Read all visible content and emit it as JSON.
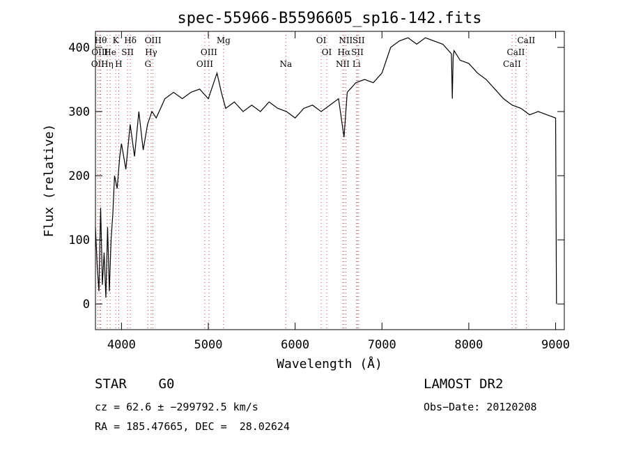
{
  "chart_data": {
    "type": "line",
    "title": "spec-55966-B5596605_sp16-142.fits",
    "xlabel": "Wavelength (Å)",
    "ylabel": "Flux (relative)",
    "xlim": [
      3700,
      9100
    ],
    "ylim": [
      -40,
      425
    ],
    "xticks": [
      4000,
      5000,
      6000,
      7000,
      8000,
      9000
    ],
    "yticks": [
      0,
      100,
      200,
      300,
      400
    ],
    "grid": false,
    "line_color": "#000000",
    "marker_color": "#c04040",
    "series": [
      {
        "x": [
          3700,
          3720,
          3740,
          3760,
          3780,
          3800,
          3820,
          3840,
          3860,
          3880,
          3900,
          3920,
          3950,
          3980,
          4000,
          4050,
          4100,
          4150,
          4200,
          4250,
          4300,
          4350,
          4400,
          4500,
          4600,
          4700,
          4800,
          4900,
          5000,
          5100,
          5150,
          5200,
          5300,
          5400,
          5500,
          5600,
          5700,
          5800,
          5900,
          6000,
          6100,
          6200,
          6300,
          6400,
          6500,
          6563,
          6600,
          6700,
          6800,
          6900,
          7000,
          7100,
          7200,
          7300,
          7400,
          7500,
          7600,
          7700,
          7800,
          7810,
          7820,
          7830,
          7900,
          8000,
          8100,
          8200,
          8300,
          8400,
          8500,
          8600,
          8700,
          8800,
          8900,
          9000,
          9010
        ],
        "y": [
          120,
          60,
          20,
          150,
          30,
          80,
          10,
          120,
          20,
          100,
          140,
          200,
          180,
          230,
          250,
          210,
          280,
          230,
          300,
          240,
          280,
          300,
          290,
          320,
          330,
          320,
          330,
          335,
          320,
          360,
          330,
          305,
          315,
          300,
          310,
          300,
          315,
          305,
          300,
          290,
          305,
          310,
          300,
          310,
          320,
          260,
          330,
          345,
          350,
          345,
          360,
          400,
          410,
          415,
          405,
          415,
          410,
          405,
          390,
          320,
          385,
          395,
          380,
          375,
          360,
          350,
          335,
          320,
          310,
          305,
          295,
          300,
          295,
          290,
          0
        ]
      }
    ],
    "line_marks": [
      {
        "x": 3727,
        "label": "OII",
        "row": 2,
        "color": "#c04040"
      },
      {
        "x": 3750,
        "label": "OIII",
        "row": 1,
        "color": "#c04040"
      },
      {
        "x": 3760,
        "label": "Hθ",
        "row": 0,
        "color": "#c04040"
      },
      {
        "x": 3835,
        "label": "Hη",
        "row": 2,
        "color": "#c04040"
      },
      {
        "x": 3869,
        "label": "He",
        "row": 1,
        "color": "#c04040"
      },
      {
        "x": 3934,
        "label": "K",
        "row": 0,
        "color": "#c04040"
      },
      {
        "x": 3968,
        "label": "H",
        "row": 2,
        "color": "#c04040"
      },
      {
        "x": 4070,
        "label": "SII",
        "row": 1,
        "color": "#c04040"
      },
      {
        "x": 4102,
        "label": "Hδ",
        "row": 0,
        "color": "#c04040"
      },
      {
        "x": 4304,
        "label": "G",
        "row": 2,
        "color": "#c04040"
      },
      {
        "x": 4341,
        "label": "Hγ",
        "row": 1,
        "color": "#c04040"
      },
      {
        "x": 4363,
        "label": "OIII",
        "row": 0,
        "color": "#c04040"
      },
      {
        "x": 4959,
        "label": "OIII",
        "row": 2,
        "color": "#c04040"
      },
      {
        "x": 5007,
        "label": "OIII",
        "row": 1,
        "color": "#c04040"
      },
      {
        "x": 5175,
        "label": "Mg",
        "row": 0,
        "color": "#c04040"
      },
      {
        "x": 5893,
        "label": "Na",
        "row": 2,
        "color": "#c04040"
      },
      {
        "x": 6300,
        "label": "OI",
        "row": 0,
        "color": "#c04040"
      },
      {
        "x": 6364,
        "label": "OI",
        "row": 1,
        "color": "#c04040"
      },
      {
        "x": 6548,
        "label": "NII",
        "row": 2,
        "color": "#c04040"
      },
      {
        "x": 6563,
        "label": "Hα",
        "row": 1,
        "color": "#c04040"
      },
      {
        "x": 6583,
        "label": "NII",
        "row": 0,
        "color": "#c04040"
      },
      {
        "x": 6707,
        "label": "Li",
        "row": 2,
        "color": "#c04040"
      },
      {
        "x": 6717,
        "label": "SII",
        "row": 1,
        "color": "#c04040"
      },
      {
        "x": 6731,
        "label": "SII",
        "row": 0,
        "color": "#c04040"
      },
      {
        "x": 8498,
        "label": "CaII",
        "row": 2,
        "color": "#c04040"
      },
      {
        "x": 8542,
        "label": "CaII",
        "row": 1,
        "color": "#c04040"
      },
      {
        "x": 8662,
        "label": "CaII",
        "row": 0,
        "color": "#c04040"
      }
    ]
  },
  "footer": {
    "class_text": "STAR    G0",
    "survey_text": "LAMOST DR2",
    "cz_text": "cz = 62.6 ± −299792.5 km/s",
    "obsdate_text": "Obs−Date: 20120208",
    "radec_text": "RA = 185.47665, DEC =  28.02624"
  }
}
